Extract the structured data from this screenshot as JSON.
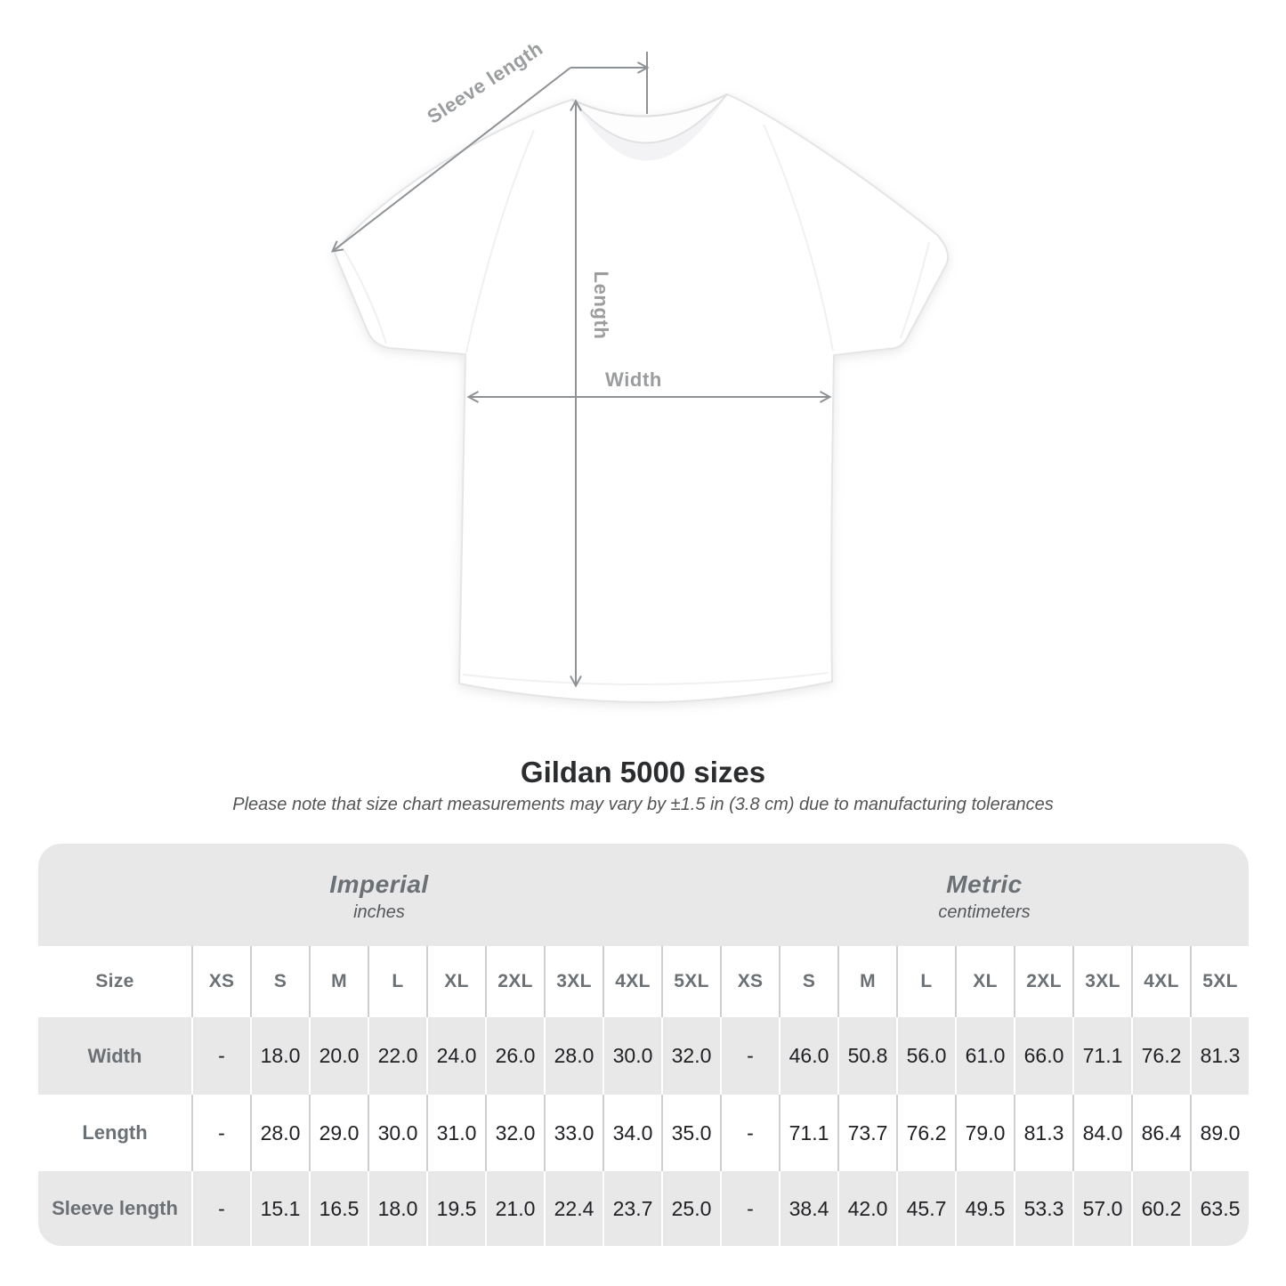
{
  "title": "Gildan 5000 sizes",
  "subtitle": "Please note that size chart measurements may vary by ±1.5 in (3.8 cm) due to manufacturing tolerances",
  "diagram": {
    "labels": {
      "sleeve_length": "Sleeve length",
      "length": "Length",
      "width": "Width"
    }
  },
  "table": {
    "unit_groups": [
      {
        "label": "Imperial",
        "sublabel": "inches"
      },
      {
        "label": "Metric",
        "sublabel": "centimeters"
      }
    ],
    "size_header": "Size",
    "sizes": [
      "XS",
      "S",
      "M",
      "L",
      "XL",
      "2XL",
      "3XL",
      "4XL",
      "5XL"
    ],
    "rows": [
      {
        "label": "Width",
        "imperial": [
          "-",
          "18.0",
          "20.0",
          "22.0",
          "24.0",
          "26.0",
          "28.0",
          "30.0",
          "32.0"
        ],
        "metric": [
          "-",
          "46.0",
          "50.8",
          "56.0",
          "61.0",
          "66.0",
          "71.1",
          "76.2",
          "81.3"
        ]
      },
      {
        "label": "Length",
        "imperial": [
          "-",
          "28.0",
          "29.0",
          "30.0",
          "31.0",
          "32.0",
          "33.0",
          "34.0",
          "35.0"
        ],
        "metric": [
          "-",
          "71.1",
          "73.7",
          "76.2",
          "79.0",
          "81.3",
          "84.0",
          "86.4",
          "89.0"
        ]
      },
      {
        "label": "Sleeve length",
        "imperial": [
          "-",
          "15.1",
          "16.5",
          "18.0",
          "19.5",
          "21.0",
          "22.4",
          "23.7",
          "25.0"
        ],
        "metric": [
          "-",
          "38.4",
          "42.0",
          "45.7",
          "49.5",
          "53.3",
          "57.0",
          "60.2",
          "63.5"
        ]
      }
    ]
  },
  "colors": {
    "table_band": "#e8e8e9",
    "row_stripe": "#e8e8e9",
    "label_text": "#6b7075",
    "value_text": "#202124",
    "title_text": "#2b2c2e",
    "subtitle_text": "#525456",
    "diagram_line": "#8f9295",
    "diagram_label": "#9a9c9e"
  }
}
